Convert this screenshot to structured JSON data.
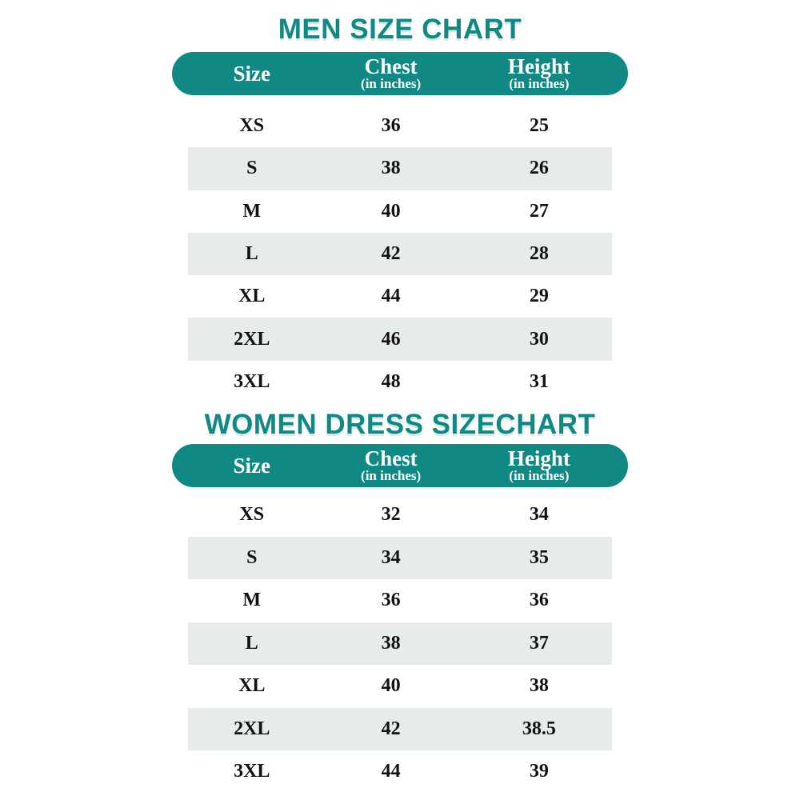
{
  "theme": {
    "teal": "#108884",
    "stripe": "#E7EBE9",
    "row_text": "#121212",
    "header_text": "#FFFFFF",
    "title_shadow": "#D5EAE9",
    "background": "#FFFFFF"
  },
  "chart_data": [
    {
      "type": "table",
      "title": "MEN SIZE CHART",
      "columns": [
        {
          "label": "Size",
          "sub": ""
        },
        {
          "label": "Chest",
          "sub": "(in inches)"
        },
        {
          "label": "Height",
          "sub": "(in inches)"
        }
      ],
      "rows": [
        [
          "XS",
          "36",
          "25"
        ],
        [
          "S",
          "38",
          "26"
        ],
        [
          "M",
          "40",
          "27"
        ],
        [
          "L",
          "42",
          "28"
        ],
        [
          "XL",
          "44",
          "29"
        ],
        [
          "2XL",
          "46",
          "30"
        ],
        [
          "3XL",
          "48",
          "31"
        ]
      ]
    },
    {
      "type": "table",
      "title": "WOMEN DRESS SIZECHART",
      "columns": [
        {
          "label": "Size",
          "sub": ""
        },
        {
          "label": "Chest",
          "sub": "(in inches)"
        },
        {
          "label": "Height",
          "sub": "(in inches)"
        }
      ],
      "rows": [
        [
          "XS",
          "32",
          "34"
        ],
        [
          "S",
          "34",
          "35"
        ],
        [
          "M",
          "36",
          "36"
        ],
        [
          "L",
          "38",
          "37"
        ],
        [
          "XL",
          "40",
          "38"
        ],
        [
          "2XL",
          "42",
          "38.5"
        ],
        [
          "3XL",
          "44",
          "39"
        ]
      ]
    }
  ]
}
